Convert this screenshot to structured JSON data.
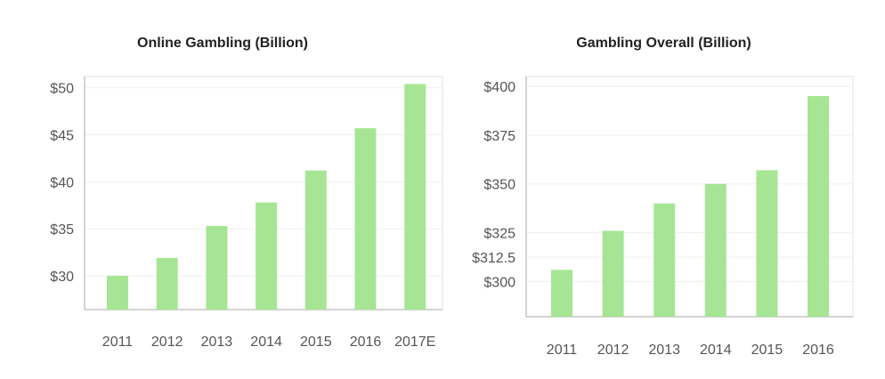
{
  "chart_data": [
    {
      "type": "bar",
      "title": "Online Gambling (Billion)",
      "categories": [
        "2011",
        "2012",
        "2013",
        "2014",
        "2015",
        "2016",
        "2017E"
      ],
      "values": [
        30.0,
        31.9,
        35.3,
        37.8,
        41.2,
        45.7,
        50.4
      ],
      "yticks": [
        "$30",
        "$35",
        "$40",
        "$45",
        "$50"
      ],
      "ytick_values": [
        30,
        35,
        40,
        45,
        50
      ],
      "ylim": [
        26.4,
        51.2
      ],
      "bar_color": "#a6e594",
      "grid": true
    },
    {
      "type": "bar",
      "title": "Gambling Overall (Billion)",
      "categories": [
        "2011",
        "2012",
        "2013",
        "2014",
        "2015",
        "2016"
      ],
      "values": [
        306,
        326,
        340,
        350,
        357,
        395
      ],
      "yticks": [
        "$300",
        "$312.5",
        "$325",
        "$350",
        "$375",
        "$400"
      ],
      "ytick_values": [
        300,
        312.5,
        325,
        350,
        375,
        400
      ],
      "ylim": [
        282,
        405
      ],
      "bar_color": "#a6e594",
      "grid": true
    }
  ]
}
